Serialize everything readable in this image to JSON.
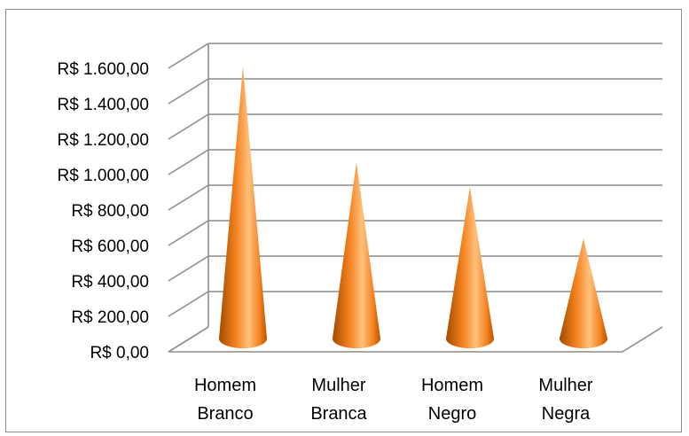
{
  "chart_data": {
    "type": "bar",
    "categories": [
      [
        "Homem",
        "Branco"
      ],
      [
        "Mulher",
        "Branca"
      ],
      [
        "Homem",
        "Negro"
      ],
      [
        "Mulher",
        "Negra"
      ]
    ],
    "values": [
      1535,
      995,
      855,
      565
    ],
    "ylim": [
      0,
      1600
    ],
    "ytick_values": [
      0,
      200,
      400,
      600,
      800,
      1000,
      1200,
      1400,
      1600
    ],
    "ytick_labels": [
      "R$ 0,00",
      "R$ 200,00",
      "R$ 400,00",
      "R$ 600,00",
      "R$ 800,00",
      "R$ 1.000,00",
      "R$ 1.200,00",
      "R$ 1.400,00",
      "R$ 1.600,00"
    ],
    "bar_shape": "cone",
    "grid": true,
    "legend": "none",
    "colors": {
      "bar_dark": "#a24a00",
      "bar_mid": "#f58220",
      "bar_light": "#ffc07a",
      "grid": "#8c8c8c"
    }
  }
}
